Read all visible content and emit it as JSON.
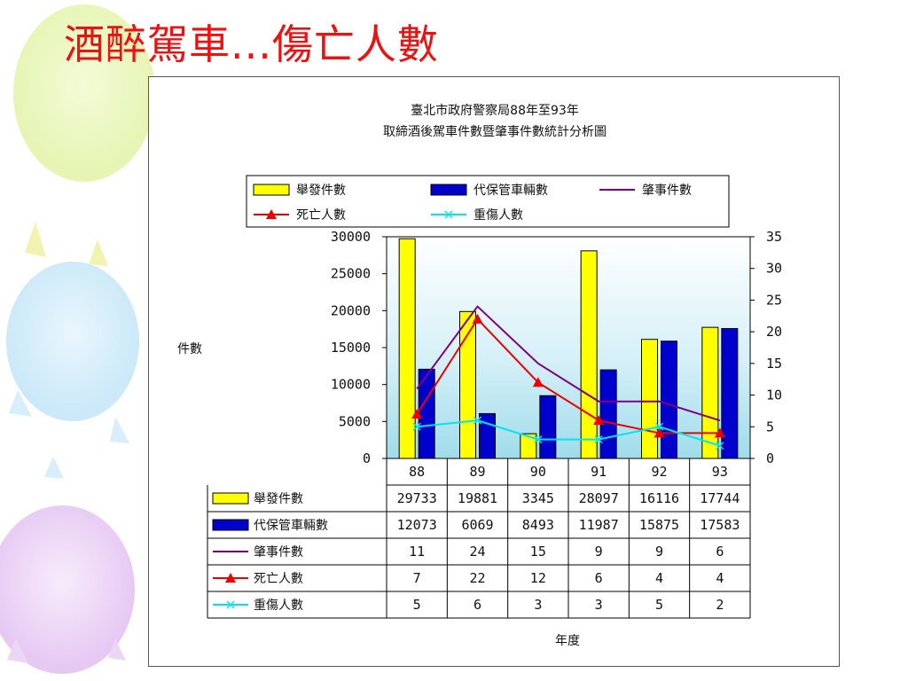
{
  "slide": {
    "title": "酒醉駕車...傷亡人數"
  },
  "chart_data": {
    "type": "bar",
    "title": "臺北市政府警察局88年至93年",
    "subtitle": "取締酒後駕車件數暨肇事件數統計分析圖",
    "xlabel": "年度",
    "ylabel": "件數",
    "categories": [
      "88",
      "89",
      "90",
      "91",
      "92",
      "93"
    ],
    "ylim": [
      0,
      30000
    ],
    "y_ticks": [
      0,
      5000,
      10000,
      15000,
      20000,
      25000,
      30000
    ],
    "y2lim": [
      0,
      35
    ],
    "y2_ticks": [
      0,
      5,
      10,
      15,
      20,
      25,
      30,
      35
    ],
    "legend_position": "top",
    "series": [
      {
        "name": "舉發件數",
        "kind": "bar",
        "axis": "left",
        "color": "#ffff00",
        "values": [
          29733,
          19881,
          3345,
          28097,
          16116,
          17744
        ]
      },
      {
        "name": "代保管車輛數",
        "kind": "bar",
        "axis": "left",
        "color": "#0000cc",
        "values": [
          12073,
          6069,
          8493,
          11987,
          15875,
          17583
        ]
      },
      {
        "name": "肇事件數",
        "kind": "line",
        "axis": "right",
        "color": "#800080",
        "marker": "none",
        "values": [
          11,
          24,
          15,
          9,
          9,
          6
        ]
      },
      {
        "name": "死亡人數",
        "kind": "line",
        "axis": "right",
        "color": "#ee0000",
        "marker": "triangle",
        "values": [
          7,
          22,
          12,
          6,
          4,
          4
        ]
      },
      {
        "name": "重傷人數",
        "kind": "line",
        "axis": "right",
        "color": "#00e5ee",
        "marker": "x",
        "values": [
          5,
          6,
          3,
          3,
          5,
          2
        ]
      }
    ]
  }
}
